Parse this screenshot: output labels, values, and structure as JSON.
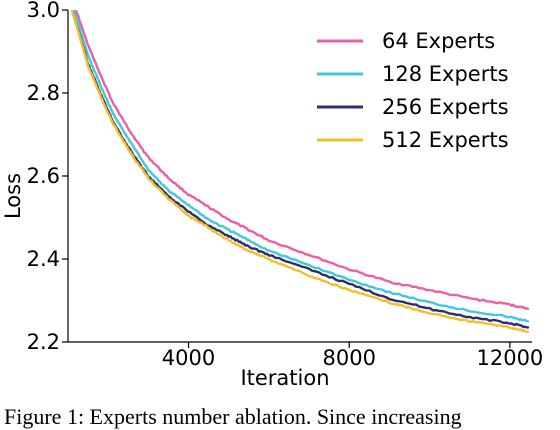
{
  "chart_data": {
    "type": "line",
    "title": "",
    "xlabel": "Iteration",
    "ylabel": "Loss",
    "xlim": [
      1000,
      12550
    ],
    "ylim": [
      2.2,
      3.0
    ],
    "x_ticks": [
      4000,
      8000,
      12000
    ],
    "y_ticks": [
      2.2,
      2.4,
      2.6,
      2.8,
      3.0
    ],
    "x_tick_labels": [
      "4000",
      "8000",
      "12000"
    ],
    "y_tick_labels": [
      "2.2",
      "2.4",
      "2.6",
      "2.8",
      "3.0"
    ],
    "legend_position": "top-right",
    "grid": false,
    "series": [
      {
        "name": "64 Experts",
        "color": "#ec5fa3",
        "x": [
          1200,
          1500,
          1800,
          2100,
          2400,
          2700,
          3000,
          3500,
          4000,
          4500,
          5000,
          5500,
          6000,
          7000,
          8000,
          9000,
          10000,
          11000,
          12000,
          12450
        ],
        "y": [
          3.0,
          2.915,
          2.845,
          2.78,
          2.73,
          2.685,
          2.645,
          2.595,
          2.555,
          2.525,
          2.495,
          2.47,
          2.445,
          2.41,
          2.375,
          2.345,
          2.325,
          2.305,
          2.29,
          2.28
        ]
      },
      {
        "name": "128 Experts",
        "color": "#3fc8de",
        "x": [
          1150,
          1500,
          1800,
          2100,
          2400,
          2700,
          3000,
          3500,
          4000,
          4500,
          5000,
          5500,
          6000,
          7000,
          8000,
          9000,
          10000,
          11000,
          12000,
          12450
        ],
        "y": [
          3.0,
          2.89,
          2.82,
          2.755,
          2.705,
          2.66,
          2.615,
          2.565,
          2.53,
          2.495,
          2.47,
          2.445,
          2.42,
          2.385,
          2.35,
          2.32,
          2.295,
          2.275,
          2.26,
          2.25
        ]
      },
      {
        "name": "256 Experts",
        "color": "#2b2f6b",
        "x": [
          1100,
          1500,
          1800,
          2100,
          2400,
          2700,
          3000,
          3500,
          4000,
          4500,
          5000,
          5500,
          6000,
          7000,
          8000,
          9000,
          10000,
          11000,
          12000,
          12450
        ],
        "y": [
          3.0,
          2.87,
          2.8,
          2.735,
          2.685,
          2.64,
          2.6,
          2.55,
          2.515,
          2.48,
          2.455,
          2.43,
          2.41,
          2.375,
          2.34,
          2.305,
          2.28,
          2.26,
          2.245,
          2.235
        ]
      },
      {
        "name": "512 Experts",
        "color": "#f4be28",
        "x": [
          1100,
          1500,
          1800,
          2100,
          2400,
          2700,
          3000,
          3500,
          4000,
          4500,
          5000,
          5500,
          6000,
          7000,
          8000,
          9000,
          10000,
          11000,
          12000,
          12450
        ],
        "y": [
          3.0,
          2.865,
          2.795,
          2.73,
          2.68,
          2.635,
          2.595,
          2.545,
          2.505,
          2.475,
          2.445,
          2.42,
          2.4,
          2.36,
          2.325,
          2.295,
          2.27,
          2.25,
          2.235,
          2.225
        ]
      }
    ]
  },
  "caption": "Figure 1: Experts number ablation. Since increasing"
}
